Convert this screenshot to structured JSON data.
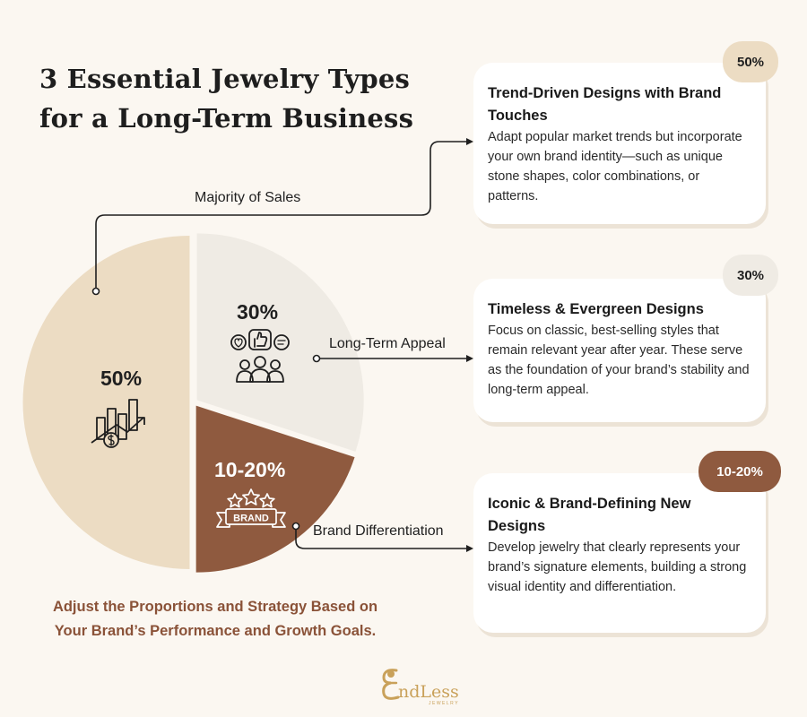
{
  "title": {
    "line1": "3 Essential Jewelry Types",
    "line2": "for a Long-Term Business"
  },
  "colors": {
    "background": "#fbf7f1",
    "slice_trend": "#ecdcc3",
    "slice_timeless": "#efebe4",
    "slice_iconic": "#8f5a3f",
    "badge_trend": "#ecdcc3",
    "badge_timeless": "#efebe4",
    "badge_iconic": "#8f5a3f",
    "footer_text": "#8a5238",
    "logo": "#c9a15a"
  },
  "chart_data": {
    "type": "pie",
    "slices": [
      {
        "label": "50%",
        "value": 50,
        "icon": "bar-chart-growth-dollar-icon"
      },
      {
        "label": "30%",
        "value": 30,
        "icon": "people-feedback-icon"
      },
      {
        "label": "10-20%",
        "value": 20,
        "icon": "brand-stars-icon"
      }
    ]
  },
  "connectors": {
    "majority": "Majority of Sales",
    "long_term": "Long-Term Appeal",
    "differentiation": "Brand Differentiation"
  },
  "cards": [
    {
      "badge": "50%",
      "heading": "Trend-Driven Designs with Brand Touches",
      "body": "Adapt popular market trends but incorporate your own brand identity—such as unique stone shapes, color combinations, or patterns."
    },
    {
      "badge": "30%",
      "heading": "Timeless & Evergreen Designs",
      "body": "Focus on classic, best-selling styles that remain relevant year after year. These serve as the foundation of your brand’s stability and long-term appeal."
    },
    {
      "badge": "10-20%",
      "heading": "Iconic & Brand-Defining New Designs",
      "body": "Develop jewelry that clearly represents your brand’s signature elements, building a strong visual identity and differentiation."
    }
  ],
  "footer": {
    "line1": "Adjust the Proportions and Strategy Based on",
    "line2": "Your Brand’s Performance and Growth Goals."
  },
  "logo": {
    "name": "ndLess",
    "sub": "JEWELRY"
  }
}
